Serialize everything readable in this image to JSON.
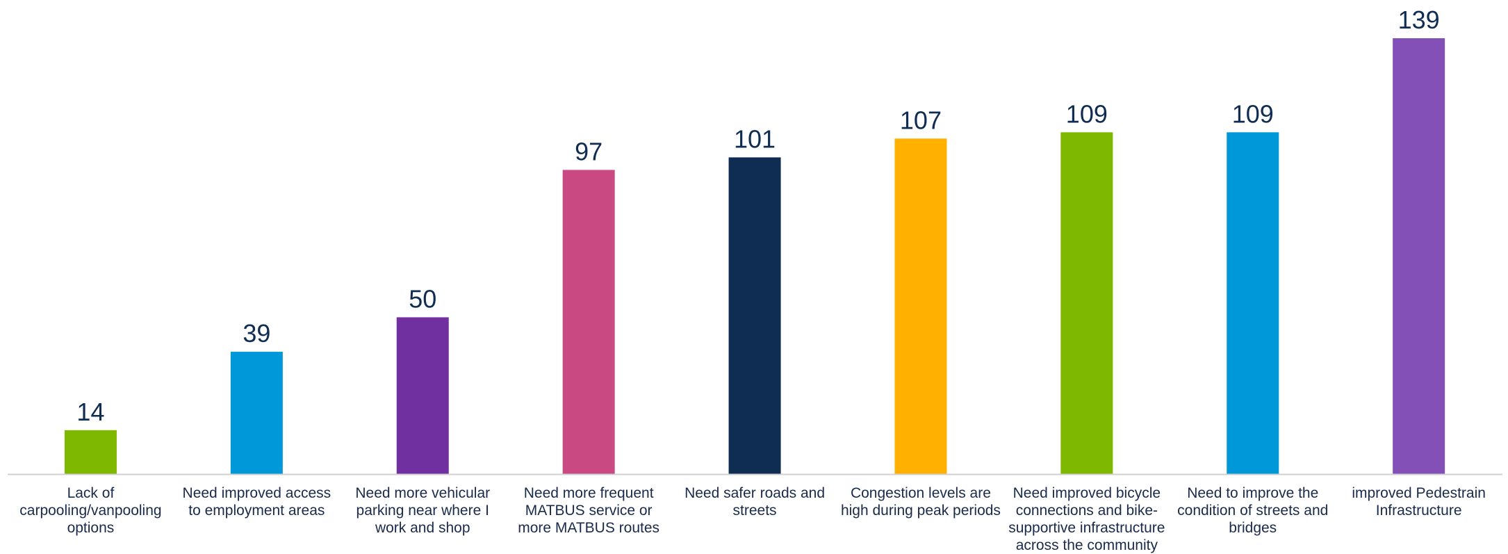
{
  "chart_data": {
    "type": "bar",
    "title": "",
    "xlabel": "",
    "ylabel": "",
    "ylim": [
      0,
      139
    ],
    "grid": false,
    "legend": "none",
    "categories": [
      "Lack of carpooling/vanpooling options",
      "Need improved access to employment areas",
      "Need more vehicular parking near where I work and shop",
      "Need more frequent MATBUS service or more MATBUS routes",
      "Need safer roads and streets",
      "Congestion levels are high during peak periods",
      "Need improved bicycle connections and bike-supportive infrastructure across the community",
      "Need to improve the condition of streets and bridges",
      "improved Pedestrain Infrastructure"
    ],
    "values": [
      14,
      39,
      50,
      97,
      101,
      107,
      109,
      109,
      139
    ],
    "colors": [
      "#7fb800",
      "#0098d8",
      "#7030a0",
      "#c94a82",
      "#0f2c52",
      "#ffb000",
      "#7fb800",
      "#0098d8",
      "#8350b8"
    ],
    "data_label_color": "#0f2c52",
    "axis_color": "#d0d0d0"
  }
}
